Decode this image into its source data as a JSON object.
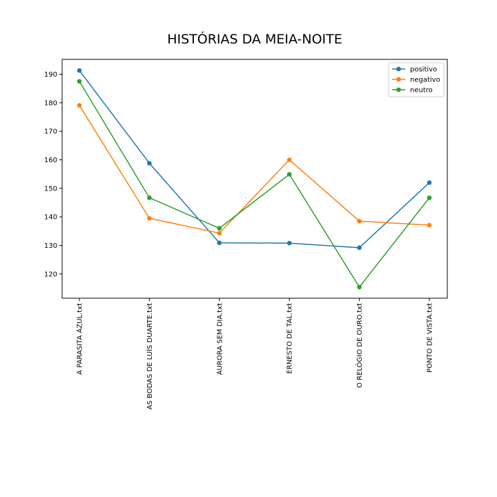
{
  "chart_data": {
    "type": "line",
    "title": "HISTÓRIAS DA MEIA-NOITE",
    "xlabel": "",
    "ylabel": "",
    "categories": [
      "A PARASITA AZUL.txt",
      "AS BODAS DE LUÍS DUARTE.txt",
      "AURORA SEM DIA.txt",
      "ERNESTO DE TAL.txt",
      "O RELÓGIO DE OURO.txt",
      "PONTO DE VISTA.txt"
    ],
    "series": [
      {
        "name": "positivo",
        "color": "#1f77b4",
        "values": [
          191.3,
          158.8,
          130.9,
          130.8,
          129.2,
          152.0
        ]
      },
      {
        "name": "negativo",
        "color": "#ff7f0e",
        "values": [
          179.1,
          139.5,
          134.3,
          160.0,
          138.5,
          137.1
        ]
      },
      {
        "name": "neutro",
        "color": "#2ca02c",
        "values": [
          187.5,
          146.7,
          136.0,
          154.9,
          115.4,
          146.7
        ]
      }
    ],
    "yticks": [
      120,
      130,
      140,
      150,
      160,
      170,
      180,
      190
    ],
    "ylim": [
      111.5,
      195.2
    ],
    "grid": false,
    "legend_position": "top-right"
  }
}
